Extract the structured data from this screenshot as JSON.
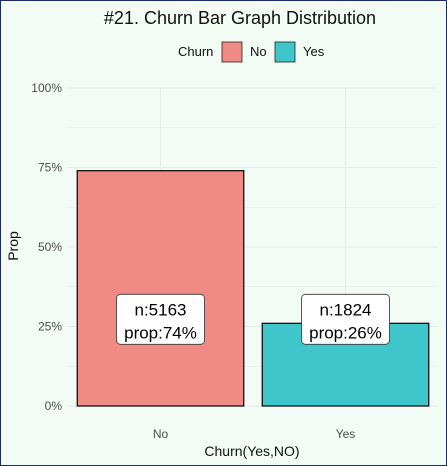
{
  "colors": {
    "background": "#f3fbf5",
    "grid": "#e3ebe6",
    "frame": "#1f2a6b"
  },
  "chart_data": {
    "type": "bar",
    "title": "#21. Churn Bar Graph Distribution",
    "xlabel": "Churn(Yes,NO)",
    "ylabel": "Prop",
    "categories": [
      "No",
      "Yes"
    ],
    "values": [
      0.74,
      0.26
    ],
    "colors": [
      "#f08a84",
      "#3fc6cb"
    ],
    "ylim": [
      0,
      1
    ],
    "yticks": [
      0,
      0.25,
      0.5,
      0.75,
      1.0
    ],
    "ytick_labels": [
      "0%",
      "25%",
      "50%",
      "75%",
      "100%"
    ],
    "grid": true,
    "legend": {
      "title": "Churn",
      "position": "top",
      "items": [
        {
          "label": "No",
          "color": "#f08a84"
        },
        {
          "label": "Yes",
          "color": "#3fc6cb"
        }
      ]
    },
    "bar_labels": [
      {
        "line1": "n:5163",
        "line2": "prop:74%"
      },
      {
        "line1": "n:1824",
        "line2": "prop:26%"
      }
    ]
  }
}
